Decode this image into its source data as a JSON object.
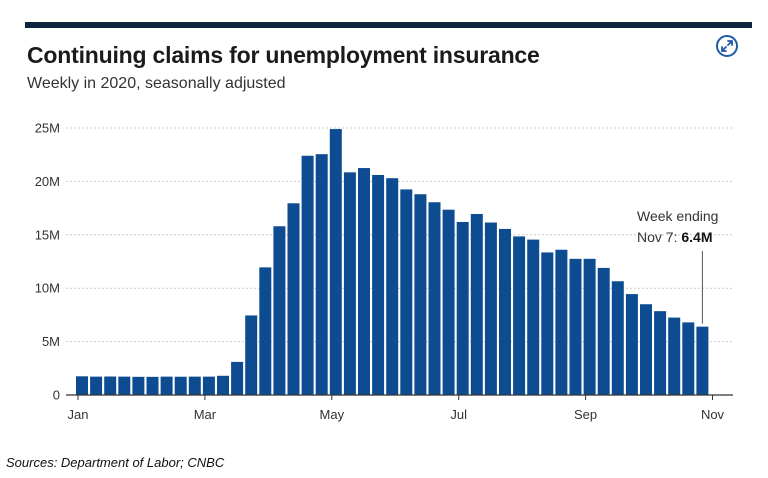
{
  "header": {
    "title": "Continuing claims for unemployment insurance",
    "subtitle": "Weekly in 2020, seasonally adjusted",
    "expand_icon": "expand-arrows-icon"
  },
  "colors": {
    "bar": "#0e4c92",
    "top_rule": "#0c2340",
    "gridline": "#cccccc",
    "axis": "#333333",
    "expand_icon": "#1f5aa6"
  },
  "chart_data": {
    "type": "bar",
    "title": "Continuing claims for unemployment insurance",
    "subtitle": "Weekly in 2020, seasonally adjusted",
    "xlabel": "",
    "ylabel": "",
    "ylim": [
      0,
      25000000
    ],
    "yticks": [
      0,
      5000000,
      10000000,
      15000000,
      20000000,
      25000000
    ],
    "ytick_labels": [
      "0",
      "5M",
      "10M",
      "15M",
      "20M",
      "25M"
    ],
    "xtick_labels": [
      "Jan",
      "Mar",
      "May",
      "Jul",
      "Sep",
      "Nov"
    ],
    "xtick_bar_index": [
      0,
      9,
      18,
      27,
      36,
      45
    ],
    "grid": true,
    "values": [
      1750000,
      1720000,
      1730000,
      1720000,
      1700000,
      1700000,
      1720000,
      1710000,
      1720000,
      1720000,
      1800000,
      3100000,
      7450000,
      11950000,
      15800000,
      17950000,
      22400000,
      22550000,
      24900000,
      20850000,
      21250000,
      20600000,
      20300000,
      19250000,
      18800000,
      18050000,
      17350000,
      16200000,
      16950000,
      16150000,
      15550000,
      14850000,
      14550000,
      13350000,
      13600000,
      12750000,
      12750000,
      11900000,
      10650000,
      9450000,
      8500000,
      7850000,
      7250000,
      6800000,
      6400000
    ],
    "annotation": {
      "line1": "Week ending",
      "line2_prefix": "Nov 7: ",
      "line2_value": "6.4M",
      "bar_index": 44
    }
  },
  "footer": {
    "source": "Sources:  Department of Labor; CNBC"
  }
}
